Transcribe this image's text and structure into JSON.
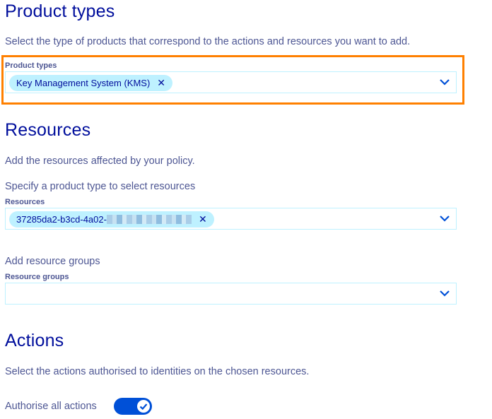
{
  "product_types": {
    "title": "Product types",
    "description": "Select the type of products that correspond to the actions and resources you want to add.",
    "field_label": "Product types",
    "selected": [
      "Key Management System (KMS)"
    ]
  },
  "resources": {
    "title": "Resources",
    "description": "Add the resources affected by your policy.",
    "hint": "Specify a product type to select resources",
    "field_label": "Resources",
    "selected": [
      "37285da2-b3cd-4a02-"
    ]
  },
  "resource_groups": {
    "hint": "Add resource groups",
    "field_label": "Resource groups"
  },
  "actions": {
    "title": "Actions",
    "description": "Select the actions authorised to identities on the chosen resources.",
    "toggle_label": "Authorise all actions",
    "toggle_on": true
  },
  "colors": {
    "accent": "#0050d7",
    "chip": "#bef1ff",
    "highlight": "#ff8000",
    "text": "#000e9c"
  },
  "icons": {
    "remove": "close-icon",
    "dropdown": "chevron-down-icon",
    "toggle": "check-icon"
  }
}
